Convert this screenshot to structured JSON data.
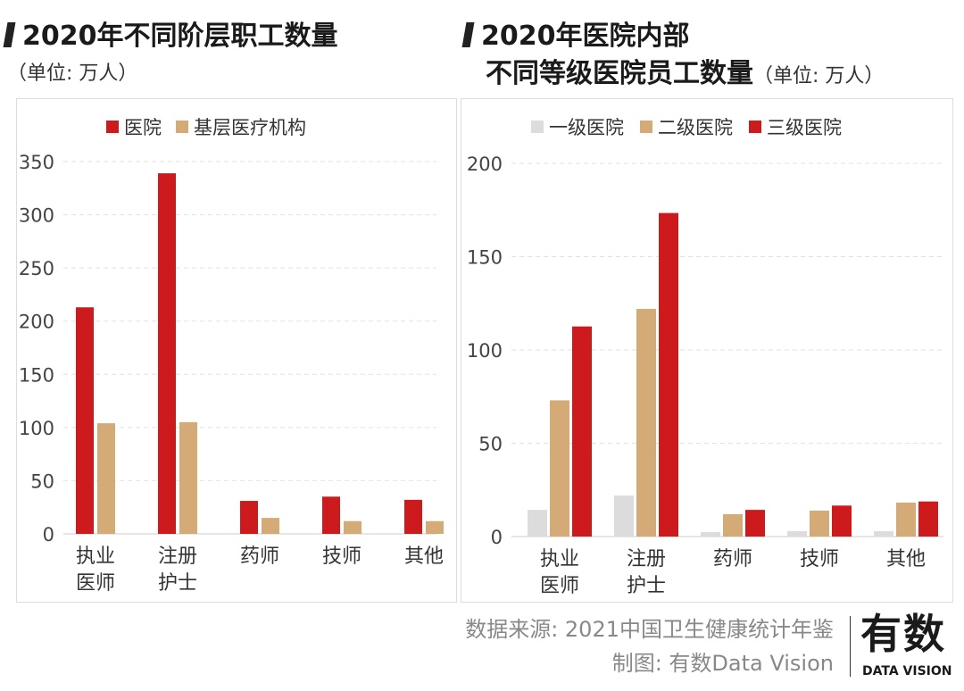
{
  "left": {
    "title": "2020年不同阶层职工数量",
    "unit": "（单位: 万人）"
  },
  "right": {
    "title_line1": "2020年医院内部",
    "title_line2": "不同等级医院员工数量",
    "unit": "（单位: 万人）"
  },
  "footer": {
    "source": "数据来源: 2021中国卫生健康统计年鉴",
    "credit": "制图: 有数Data Vision",
    "logo_main": "有数",
    "logo_sub": "DATA VISION"
  },
  "chart_data": [
    {
      "type": "bar",
      "categories": [
        "执业\n医师",
        "注册\n护士",
        "药师",
        "技师",
        "其他"
      ],
      "series": [
        {
          "name": "医院",
          "color": "#cc1a1d",
          "values": [
            213,
            339,
            31,
            35,
            32
          ]
        },
        {
          "name": "基层医疗机构",
          "color": "#d4aa77",
          "values": [
            104,
            105,
            15,
            12,
            12
          ]
        }
      ],
      "yticks": [
        0,
        50,
        100,
        150,
        200,
        250,
        300,
        350
      ],
      "ylim": [
        0,
        350
      ],
      "grid": true,
      "legend": "top"
    },
    {
      "type": "bar",
      "categories": [
        "执业\n医师",
        "注册\n护士",
        "药师",
        "技师",
        "其他"
      ],
      "series": [
        {
          "name": "一级医院",
          "color": "#dcdcdc",
          "values": [
            14.3,
            22,
            2.4,
            2.9,
            2.9
          ]
        },
        {
          "name": "二级医院",
          "color": "#d4aa77",
          "values": [
            73,
            122,
            12,
            13.9,
            18.2
          ]
        },
        {
          "name": "三级医院",
          "color": "#cc1a1d",
          "values": [
            112.6,
            173.4,
            14.3,
            16.6,
            18.8
          ]
        }
      ],
      "yticks": [
        0,
        50,
        100,
        150,
        200
      ],
      "ylim": [
        0,
        200
      ],
      "grid": true,
      "legend": "top"
    }
  ]
}
